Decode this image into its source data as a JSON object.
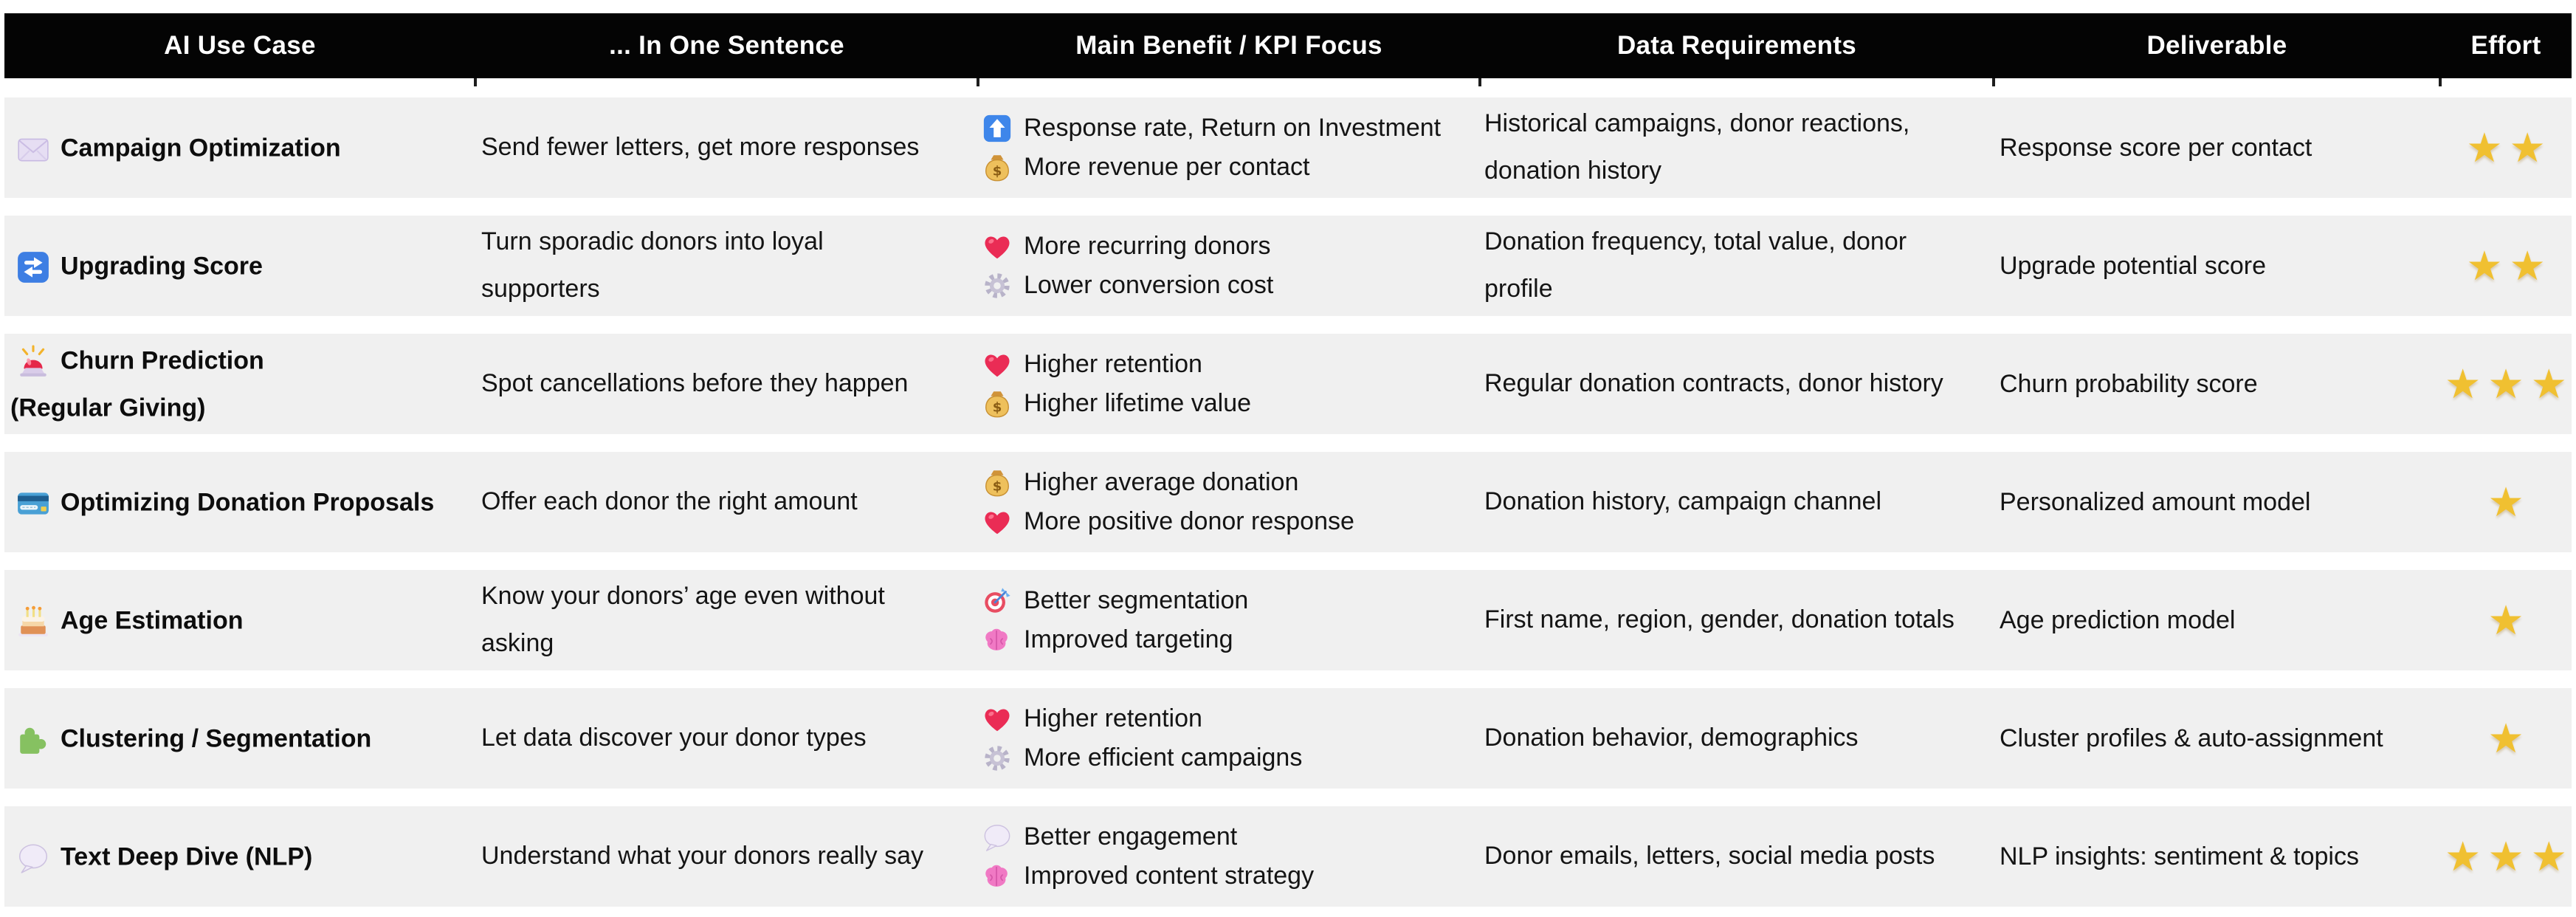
{
  "header": {
    "columns": [
      "AI Use Case",
      "... In One Sentence",
      "Main Benefit / KPI Focus",
      "Data Requirements",
      "Deliverable",
      "Effort"
    ]
  },
  "rows": [
    {
      "use_case_icon": "envelope-icon",
      "use_case": "Campaign Optimization",
      "sentence": "Send fewer letters, get more responses",
      "benefits": [
        {
          "icon": "up-arrow-icon",
          "text": "Response rate, Return on Investment"
        },
        {
          "icon": "money-bag-icon",
          "text": "More revenue per contact"
        }
      ],
      "data_requirements": "Historical campaigns, donor reactions,\ndonation history",
      "deliverable": "Response score per contact",
      "effort_stars": 2
    },
    {
      "use_case_icon": "repeat-icon",
      "use_case": "Upgrading Score",
      "sentence": "Turn sporadic donors into loyal\nsupporters",
      "benefits": [
        {
          "icon": "heart-icon",
          "text": "More recurring donors"
        },
        {
          "icon": "gear-icon",
          "text": "Lower conversion cost"
        }
      ],
      "data_requirements": "Donation frequency, total value, donor\nprofile",
      "deliverable": "Upgrade potential score",
      "effort_stars": 2
    },
    {
      "use_case_icon": "siren-icon",
      "use_case": "Churn Prediction\n(Regular Giving)",
      "sentence": "Spot cancellations before they happen",
      "benefits": [
        {
          "icon": "heart-icon",
          "text": "Higher retention"
        },
        {
          "icon": "money-bag-icon",
          "text": "Higher lifetime value"
        }
      ],
      "data_requirements": "Regular donation contracts, donor history",
      "deliverable": "Churn probability score",
      "effort_stars": 3
    },
    {
      "use_case_icon": "credit-card-icon",
      "use_case": "Optimizing Donation Proposals",
      "sentence": "Offer each donor the right amount",
      "benefits": [
        {
          "icon": "money-bag-icon",
          "text": "Higher average donation"
        },
        {
          "icon": "heart-icon",
          "text": "More positive donor response"
        }
      ],
      "data_requirements": "Donation history, campaign channel",
      "deliverable": "Personalized amount model",
      "effort_stars": 1
    },
    {
      "use_case_icon": "birthday-cake-icon",
      "use_case": "Age Estimation",
      "sentence": "Know your donors’ age even without\nasking",
      "benefits": [
        {
          "icon": "target-icon",
          "text": "Better segmentation"
        },
        {
          "icon": "brain-icon",
          "text": "Improved targeting"
        }
      ],
      "data_requirements": "First name, region, gender, donation totals",
      "deliverable": "Age prediction model",
      "effort_stars": 1
    },
    {
      "use_case_icon": "puzzle-piece-icon",
      "use_case": "Clustering / Segmentation",
      "sentence": "Let data discover your donor types",
      "benefits": [
        {
          "icon": "heart-icon",
          "text": "Higher retention"
        },
        {
          "icon": "gear-icon",
          "text": "More efficient campaigns"
        }
      ],
      "data_requirements": "Donation behavior, demographics",
      "deliverable": "Cluster profiles & auto-assignment",
      "effort_stars": 1
    },
    {
      "use_case_icon": "speech-balloon-icon",
      "use_case": "Text Deep Dive (NLP)",
      "sentence": "Understand what your donors really say",
      "benefits": [
        {
          "icon": "speech-balloon-icon",
          "text": "Better engagement"
        },
        {
          "icon": "brain-icon",
          "text": "Improved content strategy"
        }
      ],
      "data_requirements": "Donor emails, letters, social media posts",
      "deliverable": "NLP insights: sentiment & topics",
      "effort_stars": 3
    }
  ],
  "symbols": {
    "effort_star": "★"
  },
  "colors": {
    "header_bg": "#040404",
    "header_text": "#ffffff",
    "row_bg": "#f0f0f0",
    "body_text": "#141414",
    "star_gold": "#f0c031"
  }
}
